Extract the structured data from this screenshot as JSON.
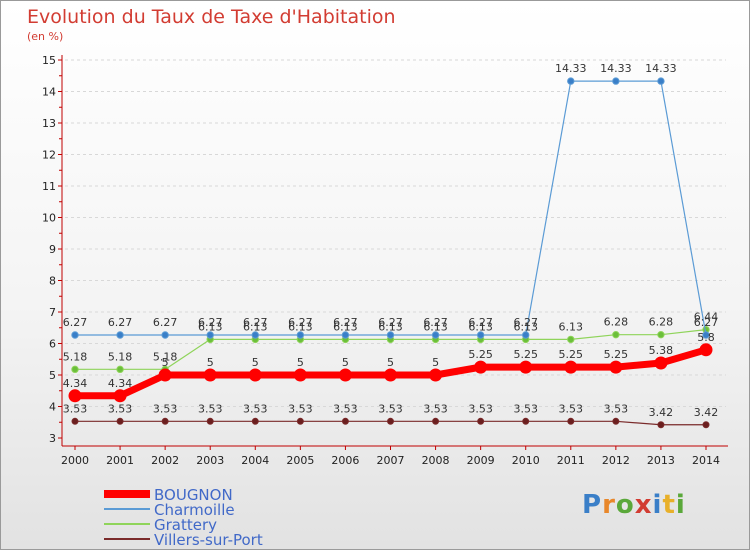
{
  "title": "Evolution du Taux de Taxe d'Habitation",
  "unit_label": "(en %)",
  "brand": "Proxiti",
  "chart_data": {
    "type": "line",
    "title": "Evolution du Taux de Taxe d'Habitation",
    "ylabel": "(en %)",
    "x": [
      "2000",
      "2001",
      "2002",
      "2003",
      "2004",
      "2005",
      "2006",
      "2007",
      "2008",
      "2009",
      "2010",
      "2011",
      "2012",
      "2013",
      "2014"
    ],
    "ylim": [
      3,
      15
    ],
    "yticks": [
      "3",
      "4",
      "5",
      "6",
      "7",
      "8",
      "9",
      "10",
      "11",
      "12",
      "13",
      "14",
      "15"
    ],
    "series": [
      {
        "name": "BOUGNON",
        "color": "#ff0000",
        "values": [
          4.34,
          4.34,
          5,
          5,
          5,
          5,
          5,
          5,
          5,
          5.25,
          5.25,
          5.25,
          5.25,
          5.38,
          5.8
        ],
        "labels": [
          "4.34",
          "4.34",
          "5",
          "5",
          "5",
          "5",
          "5",
          "5",
          "5",
          "5.25",
          "5.25",
          "5.25",
          "5.25",
          "5.38",
          "5.8"
        ]
      },
      {
        "name": "Charmoille",
        "color": "#5b9bd5",
        "values": [
          6.27,
          6.27,
          6.27,
          6.27,
          6.27,
          6.27,
          6.27,
          6.27,
          6.27,
          6.27,
          6.27,
          14.33,
          14.33,
          14.33,
          6.27
        ],
        "labels": [
          "6.27",
          "6.27",
          "6.27",
          "6.27",
          "6.27",
          "6.27",
          "6.27",
          "6.27",
          "6.27",
          "6.27",
          "6.27",
          "14.33",
          "14.33",
          "14.33",
          "6.27"
        ]
      },
      {
        "name": "Grattery",
        "color": "#8fd45a",
        "values": [
          5.18,
          5.18,
          5.18,
          6.13,
          6.13,
          6.13,
          6.13,
          6.13,
          6.13,
          6.13,
          6.13,
          6.13,
          6.28,
          6.28,
          6.44
        ],
        "labels": [
          "5.18",
          "5.18",
          "5.18",
          "6.13",
          "6.13",
          "6.13",
          "6.13",
          "6.13",
          "6.13",
          "6.13",
          "6.13",
          "6.13",
          "6.28",
          "6.28",
          "6.44"
        ]
      },
      {
        "name": "Villers-sur-Port",
        "color": "#7a2b2b",
        "values": [
          3.53,
          3.53,
          3.53,
          3.53,
          3.53,
          3.53,
          3.53,
          3.53,
          3.53,
          3.53,
          3.53,
          3.53,
          3.53,
          3.42,
          3.42
        ],
        "labels": [
          "3.53",
          "3.53",
          "3.53",
          "3.53",
          "3.53",
          "3.53",
          "3.53",
          "3.53",
          "3.53",
          "3.53",
          "3.53",
          "3.53",
          "3.53",
          "3.42",
          "3.42"
        ]
      }
    ]
  }
}
